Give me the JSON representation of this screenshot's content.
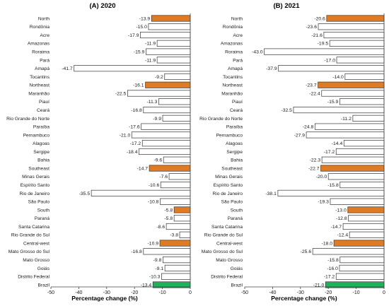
{
  "colors": {
    "region": "#E07B24",
    "country": "#1EB25A",
    "state": "#FFFFFF",
    "bar_stroke": "#333333",
    "axis": "#444444"
  },
  "chart_data": [
    {
      "type": "bar",
      "orientation": "horizontal",
      "title": "(A) 2020",
      "xlabel": "Percentage change (%)",
      "xlim": [
        -50,
        0
      ],
      "xticks": [
        -50,
        -40,
        -30,
        -20,
        -10,
        0
      ],
      "categories": [
        "North",
        "Rondônia",
        "Acre",
        "Amazonas",
        "Roraima",
        "Pará",
        "Amapá",
        "Tocantins",
        "Northeast",
        "Maranhão",
        "Piauí",
        "Ceará",
        "Rio Grande do Norte",
        "Paraíba",
        "Pernambuco",
        "Alagoas",
        "Sergipe",
        "Bahia",
        "Southeast",
        "Minas Gerais",
        "Espírito Santo",
        "Rio de Janeiro",
        "São Paulo",
        "South",
        "Paraná",
        "Santa Catarina",
        "Rio Grande do Sul",
        "Central-west",
        "Mato Grosso do Sul",
        "Mato Grosso",
        "Goiás",
        "Distrito Federal",
        "Brazil"
      ],
      "values": [
        -13.9,
        -15.0,
        -17.9,
        -11.9,
        -15.9,
        -11.9,
        -41.7,
        -9.2,
        -16.1,
        -22.5,
        -11.3,
        -16.8,
        -9.9,
        -17.6,
        -21.0,
        -17.2,
        -18.4,
        -9.6,
        -14.7,
        -7.6,
        -10.6,
        -35.5,
        -10.8,
        -5.8,
        -5.8,
        -8.6,
        -3.8,
        -10.9,
        -16.8,
        -9.8,
        -9.1,
        -10.3,
        -13.4
      ],
      "value_labels": [
        "-13.9",
        "-15.0",
        "-17.9",
        "-11.9",
        "-15.9",
        "-11.9",
        "-41.7",
        "-9.2",
        "-16.1",
        "-22.5",
        "-11.3",
        "-16.8",
        "-9.9",
        "-17.6",
        "-21.0",
        "-17.2",
        "-18.4",
        "-9.6",
        "-14.7",
        "-7.6",
        "-10.6",
        "-35.5",
        "-10.8",
        "-5.8",
        "-5.8",
        "-8.6",
        "-3.8",
        "-10.9",
        "-16.8",
        "-9.8",
        "-9.1",
        "-10.3",
        "-13.4"
      ],
      "kinds": [
        "region",
        "state",
        "state",
        "state",
        "state",
        "state",
        "state",
        "state",
        "region",
        "state",
        "state",
        "state",
        "state",
        "state",
        "state",
        "state",
        "state",
        "state",
        "region",
        "state",
        "state",
        "state",
        "state",
        "region",
        "state",
        "state",
        "state",
        "region",
        "state",
        "state",
        "state",
        "state",
        "country"
      ]
    },
    {
      "type": "bar",
      "orientation": "horizontal",
      "title": "(B) 2021",
      "xlabel": "Percentage change (%)",
      "xlim": [
        -50,
        0
      ],
      "xticks": [
        -50,
        -40,
        -30,
        -20,
        -10,
        0
      ],
      "categories": [
        "North",
        "Rondônia",
        "Acre",
        "Amazonas",
        "Roraima",
        "Pará",
        "Amapá",
        "Tocantins",
        "Northeast",
        "Maranhão",
        "Piauí",
        "Ceará",
        "Rio Grande do Norte",
        "Paraíba",
        "Pernambuco",
        "Alagoas",
        "Sergipe",
        "Bahia",
        "Southeast",
        "Minas Gerais",
        "Espírito Santo",
        "Rio de Janeiro",
        "São Paulo",
        "South",
        "Paraná",
        "Santa Catarina",
        "Rio Grande do Sul",
        "Central-west",
        "Mato Grosso do Sul",
        "Mato Grosso",
        "Goiás",
        "Distrito Federal",
        "Brazil"
      ],
      "values": [
        -20.6,
        -23.6,
        -21.6,
        -19.5,
        -43.0,
        -17.0,
        -37.9,
        -14.0,
        -23.7,
        -22.4,
        -15.9,
        -32.5,
        -11.2,
        -24.8,
        -27.9,
        -14.4,
        -17.2,
        -22.3,
        -22.7,
        -20.0,
        -15.8,
        -38.1,
        -19.3,
        -13.0,
        -12.8,
        -14.7,
        -12.4,
        -18.0,
        -25.6,
        -15.8,
        -16.0,
        -17.2,
        -21.0
      ],
      "value_labels": [
        "-20.6",
        "-23.6",
        "-21.6",
        "-19.5",
        "-43.0",
        "-17.0",
        "-37.9",
        "-14.0",
        "-23.7",
        "-22.4",
        "-15.9",
        "-32.5",
        "-11.2",
        "-24.8",
        "-27.9",
        "-14.4",
        "-17.2",
        "-22.3",
        "-22.7",
        "-20.0",
        "-15.8",
        "-38.1",
        "-19.3",
        "-13.0",
        "-12.8",
        "-14.7",
        "-12.4",
        "-18.0",
        "-25.6",
        "-15.8",
        "-16.0",
        "-17.2",
        "-21.0"
      ],
      "kinds": [
        "region",
        "state",
        "state",
        "state",
        "state",
        "state",
        "state",
        "state",
        "region",
        "state",
        "state",
        "state",
        "state",
        "state",
        "state",
        "state",
        "state",
        "state",
        "region",
        "state",
        "state",
        "state",
        "state",
        "region",
        "state",
        "state",
        "state",
        "region",
        "state",
        "state",
        "state",
        "state",
        "country"
      ]
    }
  ]
}
